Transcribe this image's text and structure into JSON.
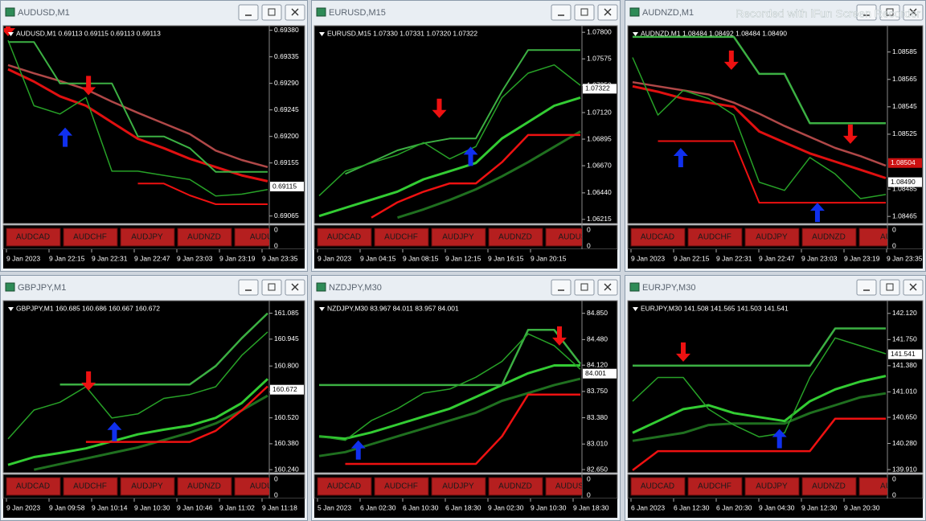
{
  "watermark": "Recorded with iFun Screen Recorder",
  "windows": [
    {
      "title": "AUDUSD,M1",
      "header": "AUDUSD,M1  0.69113 0.69115 0.69113 0.69113",
      "ylim": [
        0.69055,
        0.69385
      ],
      "yticks": [
        {
          "value": 0.6938,
          "label": "0.69380"
        },
        {
          "value": 0.69335,
          "label": "0.69335"
        },
        {
          "value": 0.6929,
          "label": "0.69290"
        },
        {
          "value": 0.69245,
          "label": "0.69245"
        },
        {
          "value": 0.692,
          "label": "0.69200"
        },
        {
          "value": 0.69155,
          "label": "0.69155"
        },
        {
          "value": 0.69065,
          "label": "0.69065"
        }
      ],
      "price_labels": [
        {
          "value": 0.69115,
          "label": "0.69115",
          "color": "#ffffff"
        }
      ],
      "series": [
        {
          "color": "#b04848",
          "width": 2.5,
          "values": [
            0.69321,
            0.69307,
            0.69294,
            0.6928,
            0.69259,
            0.6924,
            0.69222,
            0.69204,
            0.69176,
            0.6916,
            0.69148
          ]
        },
        {
          "color": "#e01010",
          "width": 3,
          "values": [
            0.69314,
            0.69293,
            0.69268,
            0.69252,
            0.69224,
            0.69196,
            0.6918,
            0.69162,
            0.69148,
            0.69134,
            0.69124
          ]
        },
        {
          "color": "#3cb043",
          "width": 2,
          "values": [
            0.6936,
            0.6936,
            0.6929,
            0.6929,
            0.6929,
            0.692,
            0.692,
            0.6918,
            0.6914,
            0.6914,
            0.6914
          ]
        },
        {
          "color": "#ee1111",
          "width": 2,
          "values": [
            null,
            null,
            null,
            null,
            null,
            0.6912,
            0.6912,
            0.691,
            0.69085,
            0.69085,
            0.69085
          ]
        },
        {
          "color": "#27a127",
          "width": 1.5,
          "values": [
            0.69363,
            0.69252,
            0.69238,
            0.69266,
            0.69141,
            0.69141,
            0.69134,
            0.69127,
            0.69099,
            0.69102,
            0.6911
          ]
        }
      ],
      "down_signals": [
        {
          "x": 0,
          "y": 0.6937
        },
        {
          "x": 3.1,
          "y": 0.6927
        }
      ],
      "up_signals": [
        {
          "x": 2.2,
          "y": 0.69215
        }
      ],
      "buttons": [
        "AUDCAD",
        "AUDCHF",
        "AUDJPY",
        "AUDNZD",
        "AUDU"
      ],
      "indicator_ticks": [
        0,
        0
      ],
      "time_labels": [
        "9 Jan 2023",
        "9 Jan 22:15",
        "9 Jan 22:31",
        "9 Jan 22:47",
        "9 Jan 23:03",
        "9 Jan 23:19",
        "9 Jan 23:35"
      ]
    },
    {
      "title": "EURUSD,M15",
      "header": "EURUSD,M15  1.07330 1.07331 1.07320 1.07322",
      "ylim": [
        1.06194,
        1.07842
      ],
      "yticks": [
        {
          "value": 1.078,
          "label": "1.07800"
        },
        {
          "value": 1.07575,
          "label": "1.07575"
        },
        {
          "value": 1.0735,
          "label": "1.07350"
        },
        {
          "value": 1.0712,
          "label": "1.07120"
        },
        {
          "value": 1.06895,
          "label": "1.06895"
        },
        {
          "value": 1.0667,
          "label": "1.06670"
        },
        {
          "value": 1.0644,
          "label": "1.06440"
        },
        {
          "value": 1.06215,
          "label": "1.06215"
        }
      ],
      "price_labels": [
        {
          "value": 1.07322,
          "label": "1.07322",
          "color": "#ffffff"
        }
      ],
      "series": [
        {
          "color": "#1f6f1f",
          "width": 3,
          "values": [
            null,
            null,
            null,
            1.0623,
            1.063,
            1.0638,
            1.0647,
            1.0658,
            1.067,
            1.0683,
            1.0696
          ]
        },
        {
          "color": "#33cc33",
          "width": 3,
          "values": [
            1.06244,
            1.06313,
            1.06382,
            1.06451,
            1.06555,
            1.06624,
            1.06693,
            1.06901,
            1.07039,
            1.07178,
            1.07247
          ]
        },
        {
          "color": "#3cb043",
          "width": 2,
          "values": [
            null,
            1.066,
            1.067,
            1.068,
            1.0686,
            1.069,
            1.069,
            1.073,
            1.0765,
            1.0765,
            1.0765
          ]
        },
        {
          "color": "#ee1111",
          "width": 2.5,
          "values": [
            null,
            null,
            1.0623,
            1.0636,
            1.0645,
            1.0652,
            1.0652,
            1.067,
            1.0693,
            1.0693,
            1.0693
          ]
        },
        {
          "color": "#27a127",
          "width": 1.5,
          "values": [
            1.06416,
            1.06624,
            1.06693,
            1.06762,
            1.06866,
            1.06728,
            1.06832,
            1.07247,
            1.07454,
            1.07524,
            1.07351
          ]
        }
      ],
      "down_signals": [
        {
          "x": 4.6,
          "y": 1.07074
        }
      ],
      "up_signals": [
        {
          "x": 5.8,
          "y": 1.06832
        }
      ],
      "buttons": [
        "AUDCAD",
        "AUDCHF",
        "AUDJPY",
        "AUDNZD",
        "AUDUS"
      ],
      "indicator_ticks": [
        0,
        0
      ],
      "time_labels": [
        "9 Jan 2023",
        "9 Jan 04:15",
        "9 Jan 08:15",
        "9 Jan 12:15",
        "9 Jan 16:15",
        "9 Jan 20:15"
      ]
    },
    {
      "title": "AUDNZD,M1",
      "header": "AUDNZD,M1  1.08484 1.08492 1.08484 1.08490",
      "ylim": [
        1.08461,
        1.08603
      ],
      "yticks": [
        {
          "value": 1.08585,
          "label": "1.08585"
        },
        {
          "value": 1.08565,
          "label": "1.08565"
        },
        {
          "value": 1.08545,
          "label": "1.08545"
        },
        {
          "value": 1.08525,
          "label": "1.08525"
        },
        {
          "value": 1.08485,
          "label": "1.08485"
        },
        {
          "value": 1.08465,
          "label": "1.08465"
        }
      ],
      "price_labels": [
        {
          "value": 1.08504,
          "label": "1.08504",
          "color": "#cc1111"
        },
        {
          "value": 1.0849,
          "label": "1.08490",
          "color": "#ffffff"
        }
      ],
      "series": [
        {
          "color": "#b04848",
          "width": 2.5,
          "values": [
            1.08563,
            1.0856,
            1.08557,
            1.08554,
            1.08548,
            1.0854,
            1.08531,
            1.08523,
            1.08515,
            1.08509,
            1.08502
          ]
        },
        {
          "color": "#e01010",
          "width": 3,
          "values": [
            1.0856,
            1.08556,
            1.08551,
            1.08548,
            1.08545,
            1.08527,
            1.08519,
            1.08511,
            1.08505,
            1.08499,
            1.08493
          ]
        },
        {
          "color": "#3cb043",
          "width": 2.5,
          "values": [
            1.08596,
            1.08596,
            1.08596,
            1.08596,
            1.08596,
            1.08569,
            1.08569,
            1.08533,
            1.08533,
            1.08533,
            1.08533
          ]
        },
        {
          "color": "#ee1111",
          "width": 2,
          "values": [
            null,
            1.0852,
            1.0852,
            1.0852,
            1.0852,
            1.08475,
            1.08475,
            1.08475,
            1.08475,
            1.08475,
            1.08475
          ]
        },
        {
          "color": "#27a127",
          "width": 1.5,
          "values": [
            1.08581,
            1.08539,
            1.08557,
            1.08551,
            1.08539,
            1.0849,
            1.08484,
            1.08508,
            1.08496,
            1.08478,
            1.08481
          ]
        }
      ],
      "down_signals": [
        {
          "x": 3.9,
          "y": 1.08572
        },
        {
          "x": 8.6,
          "y": 1.08518
        }
      ],
      "up_signals": [
        {
          "x": 1.9,
          "y": 1.08515
        },
        {
          "x": 7.3,
          "y": 1.08475
        }
      ],
      "buttons": [
        "AUDCAD",
        "AUDCHF",
        "AUDJPY",
        "AUDNZD",
        "AU"
      ],
      "indicator_ticks": [
        0,
        0
      ],
      "time_labels": [
        "9 Jan 2023",
        "9 Jan 22:15",
        "9 Jan 22:31",
        "9 Jan 22:47",
        "9 Jan 23:03",
        "9 Jan 23:19",
        "9 Jan 23:35"
      ]
    },
    {
      "title": "GBPJPY,M1",
      "header": "GBPJPY,M1  160.685 160.686 160.667 160.672",
      "ylim": [
        160.232,
        161.144
      ],
      "yticks": [
        161.085,
        160.945,
        {
          "value": 160.8,
          "label": "160.800"
        },
        {
          "value": 160.66,
          "label": "160.660"
        },
        {
          "value": 160.52,
          "label": "160.520"
        },
        {
          "value": 160.38,
          "label": "160.380"
        },
        {
          "value": 160.24,
          "label": "160.240"
        }
      ],
      "price_labels": [
        {
          "value": 160.672,
          "label": "160.672",
          "color": "#ffffff"
        }
      ],
      "series": [
        {
          "color": "#1f6f1f",
          "width": 3,
          "values": [
            null,
            160.24,
            160.27,
            160.3,
            160.33,
            160.36,
            160.4,
            160.44,
            160.49,
            160.56,
            160.64
          ]
        },
        {
          "color": "#33cc33",
          "width": 3,
          "values": [
            160.266,
            160.308,
            160.33,
            160.355,
            160.393,
            160.431,
            160.456,
            160.478,
            160.52,
            160.6,
            160.73
          ]
        },
        {
          "color": "#3cb043",
          "width": 2.5,
          "values": [
            null,
            null,
            160.7,
            160.7,
            160.7,
            160.7,
            160.7,
            160.7,
            160.8,
            160.95,
            161.085
          ]
        },
        {
          "color": "#ee1111",
          "width": 2.5,
          "values": [
            null,
            null,
            null,
            160.39,
            160.39,
            160.39,
            160.39,
            160.39,
            160.45,
            160.56,
            160.69
          ]
        },
        {
          "color": "#27a127",
          "width": 1.5,
          "values": [
            160.406,
            160.562,
            160.604,
            160.688,
            160.519,
            160.541,
            160.625,
            160.646,
            160.688,
            160.857,
            160.984
          ]
        }
      ],
      "down_signals": [
        {
          "x": 3.1,
          "y": 160.667
        }
      ],
      "up_signals": [
        {
          "x": 4.1,
          "y": 160.498
        }
      ],
      "buttons": [
        "AUDCAD",
        "AUDCHF",
        "AUDJPY",
        "AUDNZD",
        "AUDU"
      ],
      "indicator_ticks": [
        0,
        0
      ],
      "time_labels": [
        "9 Jan 2023",
        "9 Jan 09:58",
        "9 Jan 10:14",
        "9 Jan 10:30",
        "9 Jan 10:46",
        "9 Jan 11:02",
        "9 Jan 11:18"
      ]
    },
    {
      "title": "NZDJPY,M30",
      "header": "NZDJPY,M30  83.967 84.011 83.957 84.001",
      "ylim": [
        82.628,
        85.005
      ],
      "yticks": [
        {
          "value": 84.85,
          "label": "84.850"
        },
        {
          "value": 84.48,
          "label": "84.480"
        },
        {
          "value": 84.12,
          "label": "84.120"
        },
        {
          "value": 83.75,
          "label": "83.750"
        },
        {
          "value": 83.38,
          "label": "83.380"
        },
        {
          "value": 83.01,
          "label": "83.010"
        },
        {
          "value": 82.65,
          "label": "82.650"
        }
      ],
      "price_labels": [
        {
          "value": 84.001,
          "label": "84.001",
          "color": "#ffffff"
        }
      ],
      "series": [
        {
          "color": "#1f6f1f",
          "width": 3,
          "values": [
            82.841,
            82.896,
            83.007,
            83.118,
            83.229,
            83.34,
            83.451,
            83.618,
            83.727,
            83.84,
            83.928
          ]
        },
        {
          "color": "#33cc33",
          "width": 3,
          "values": [
            83.118,
            83.085,
            83.174,
            83.285,
            83.396,
            83.507,
            83.673,
            83.84,
            84.006,
            84.117,
            84.117
          ]
        },
        {
          "color": "#3cb043",
          "width": 2.5,
          "values": [
            83.84,
            83.84,
            83.84,
            83.84,
            83.84,
            83.84,
            83.84,
            83.84,
            84.617,
            84.617,
            84.139
          ]
        },
        {
          "color": "#ee1111",
          "width": 2.5,
          "values": [
            null,
            82.73,
            82.73,
            82.73,
            82.73,
            82.73,
            82.73,
            83.118,
            83.706,
            83.706,
            83.706
          ]
        },
        {
          "color": "#27a127",
          "width": 1.5,
          "values": [
            83.118,
            83.063,
            83.34,
            83.507,
            83.727,
            83.784,
            83.95,
            84.173,
            84.561,
            84.395,
            84.062
          ]
        }
      ],
      "down_signals": [
        {
          "x": 9.2,
          "y": 84.395
        }
      ],
      "up_signals": [
        {
          "x": 1.5,
          "y": 83.063
        }
      ],
      "buttons": [
        "AUDCAD",
        "AUDCHF",
        "AUDJPY",
        "AUDNZD",
        "AUDUSD"
      ],
      "indicator_ticks": [
        0,
        0
      ],
      "time_labels": [
        "5 Jan 2023",
        "6 Jan 02:30",
        "6 Jan 10:30",
        "6 Jan 18:30",
        "9 Jan 02:30",
        "9 Jan 10:30",
        "9 Jan 18:30"
      ]
    },
    {
      "title": "EURJPY,M30",
      "header": "EURJPY,M30  141.508 141.565 141.503 141.541",
      "ylim": [
        139.888,
        142.277
      ],
      "yticks": [
        {
          "value": 142.12,
          "label": "142.120"
        },
        {
          "value": 141.75,
          "label": "141.750"
        },
        {
          "value": 141.38,
          "label": "141.380"
        },
        {
          "value": 141.01,
          "label": "141.010"
        },
        {
          "value": 140.65,
          "label": "140.650"
        },
        {
          "value": 140.28,
          "label": "140.280"
        },
        {
          "value": 139.91,
          "label": "139.910"
        }
      ],
      "price_labels": [
        {
          "value": 141.541,
          "label": "141.541",
          "color": "#ffffff"
        }
      ],
      "series": [
        {
          "color": "#1f6f1f",
          "width": 3,
          "values": [
            140.317,
            140.373,
            140.429,
            140.541,
            140.563,
            140.563,
            140.563,
            140.709,
            140.821,
            140.933,
            140.989
          ]
        },
        {
          "color": "#33cc33",
          "width": 3,
          "values": [
            140.429,
            140.597,
            140.765,
            140.821,
            140.709,
            140.653,
            140.597,
            140.877,
            141.045,
            141.157,
            141.235
          ]
        },
        {
          "color": "#3cb043",
          "width": 2.5,
          "values": [
            141.381,
            141.381,
            141.381,
            141.381,
            141.381,
            141.381,
            141.381,
            141.381,
            141.907,
            141.907,
            141.907
          ]
        },
        {
          "color": "#ee1111",
          "width": 2.5,
          "values": [
            139.9,
            140.171,
            140.171,
            140.171,
            140.171,
            140.171,
            140.171,
            140.171,
            140.631,
            140.631,
            140.631
          ]
        },
        {
          "color": "#27a127",
          "width": 1.5,
          "values": [
            140.877,
            141.213,
            141.213,
            140.765,
            140.541,
            140.373,
            140.429,
            141.213,
            141.773,
            141.661,
            141.549
          ]
        }
      ],
      "down_signals": [
        {
          "x": 2.0,
          "y": 141.437
        }
      ],
      "up_signals": [
        {
          "x": 5.8,
          "y": 140.485
        }
      ],
      "buttons": [
        "AUDCAD",
        "AUDCHF",
        "AUDJPY",
        "AUDNZD",
        "AU"
      ],
      "indicator_ticks": [
        0,
        0
      ],
      "time_labels": [
        "6 Jan 2023",
        "6 Jan 12:30",
        "6 Jan 20:30",
        "9 Jan 04:30",
        "9 Jan 12:30",
        "9 Jan 20:30"
      ]
    }
  ]
}
